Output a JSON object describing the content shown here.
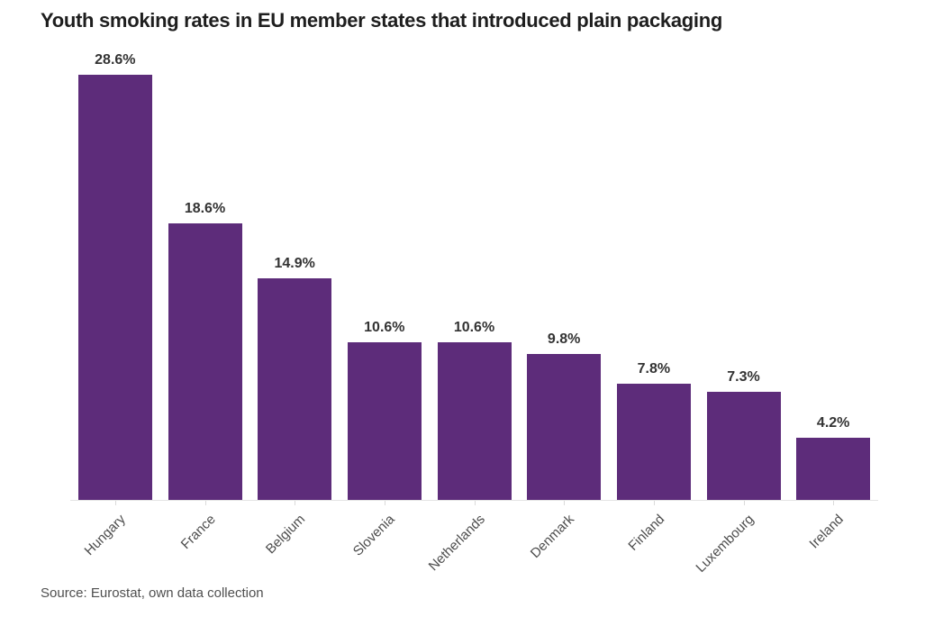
{
  "chart_data": {
    "type": "bar",
    "title": "Youth smoking rates in EU member states that introduced plain packaging",
    "categories": [
      "Hungary",
      "France",
      "Belgium",
      "Slovenia",
      "Netherlands",
      "Denmark",
      "Finland",
      "Luxembourg",
      "Ireland"
    ],
    "values": [
      28.6,
      18.6,
      14.9,
      10.6,
      10.6,
      9.8,
      7.8,
      7.3,
      4.2
    ],
    "value_labels": [
      "28.6%",
      "18.6%",
      "14.9%",
      "10.6%",
      "10.6%",
      "9.8%",
      "7.8%",
      "7.3%",
      "4.2%"
    ],
    "unit": "%",
    "xlabel": "",
    "ylabel": "",
    "ylim": [
      0,
      30
    ],
    "grid": false,
    "legend": "none",
    "bar_color": "#5d2c7a",
    "title_color": "#1e1e1e",
    "value_label_color": "#333333",
    "axis_line_color": "#e4e4e4",
    "tick_color": "#dadada",
    "category_label_color": "#4d4d4d",
    "source_note": "Source: Eurostat, own data collection",
    "source_color": "#4f4f4f"
  }
}
